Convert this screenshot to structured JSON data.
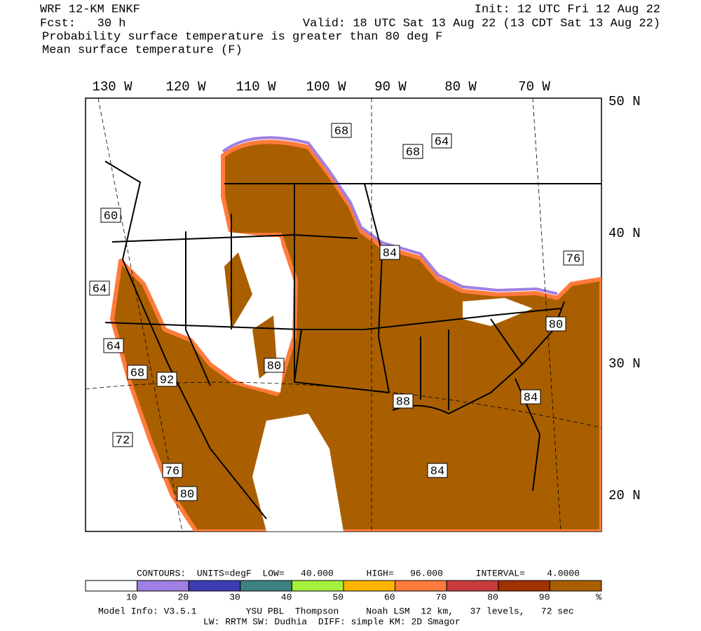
{
  "header": {
    "model": "WRF 12-KM ENKF",
    "init": "Init: 12 UTC Fri 12 Aug 22",
    "forecast": "Fcst:   30 h",
    "valid": "Valid: 18 UTC Sat 13 Aug 22 (13 CDT Sat 13 Aug 22)",
    "field1": "Probability surface temperature is greater than 80 deg F",
    "field2": "Mean surface temperature (F)"
  },
  "map": {
    "longitudes": [
      "130 W",
      "120 W",
      "110 W",
      "100 W",
      "90 W",
      "80 W",
      "70 W"
    ],
    "latitudes": [
      "50 N",
      "40 N",
      "30 N",
      "20 N"
    ],
    "contour_labels": [
      "68",
      "68",
      "64",
      "60",
      "84",
      "76",
      "64",
      "80",
      "64",
      "80",
      "68",
      "92",
      "88",
      "84",
      "72",
      "76",
      "84",
      "80"
    ]
  },
  "colorbar": {
    "header": "CONTOURS:  UNITS=degF  LOW=   40.000      HIGH=   96.000      INTERVAL=    4.0000",
    "colors": [
      "#ffffff",
      "#9f7fe3",
      "#3c3cb4",
      "#3c8282",
      "#a6f03c",
      "#ffb400",
      "#ff7b3c",
      "#c83c3c",
      "#a03200",
      "#a95f00"
    ],
    "labels": [
      "10",
      "20",
      "30",
      "40",
      "50",
      "60",
      "70",
      "80",
      "90",
      "%"
    ]
  },
  "footer": {
    "line1": "Model Info: V3.5.1         YSU PBL  Thompson     Noah LSM  12 km,   37 levels,   72 sec",
    "line2": "LW: RRTM SW: Dudhia  DIFF: simple KM: 2D Smagor"
  }
}
